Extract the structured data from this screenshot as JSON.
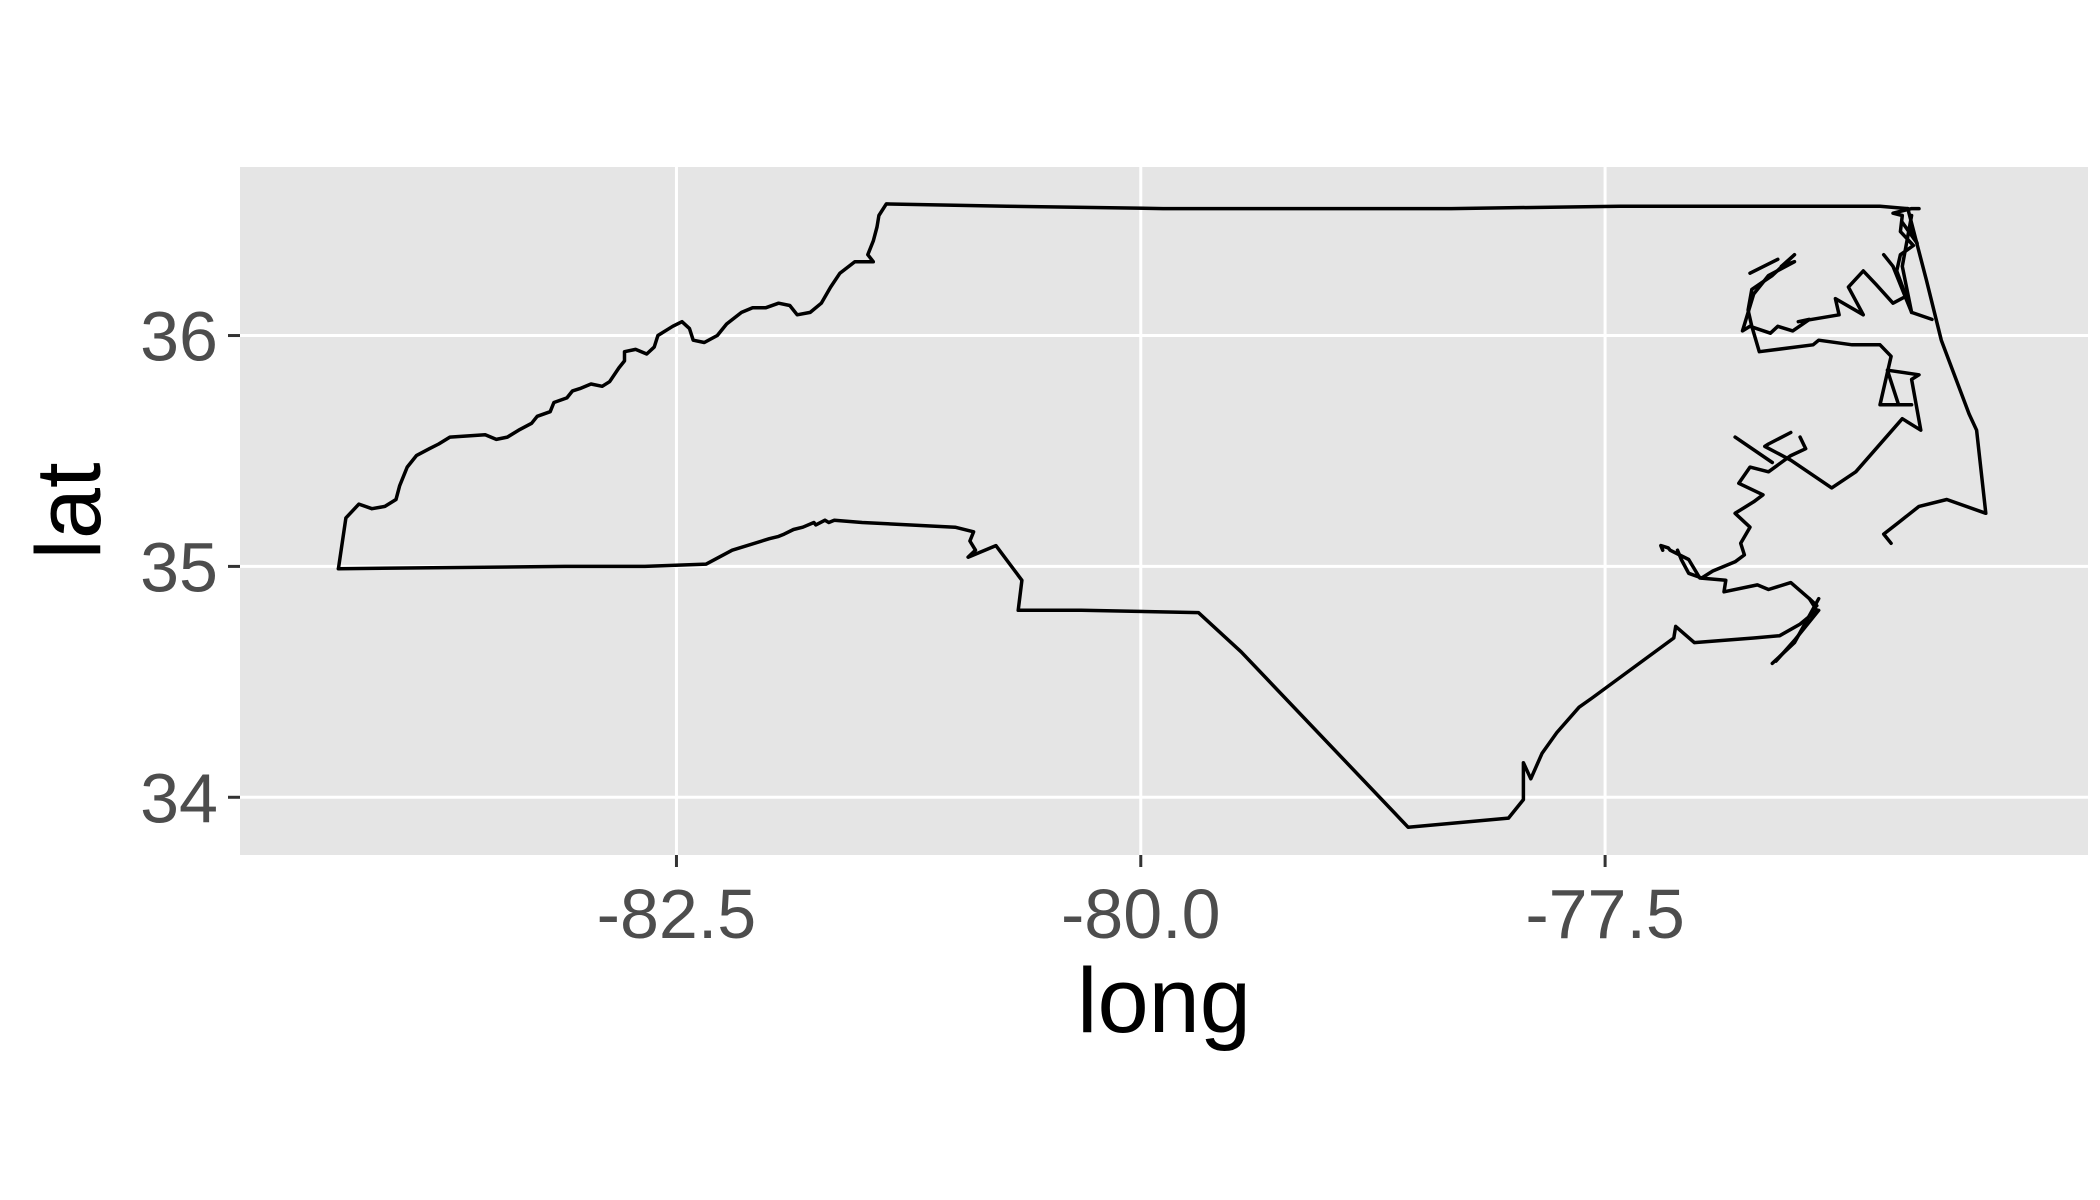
{
  "chart_data": {
    "type": "map-outline",
    "xlabel": "long",
    "ylabel": "lat",
    "xlim": [
      -84.85,
      -74.9
    ],
    "ylim": [
      33.75,
      36.73
    ],
    "x_ticks": [
      {
        "value": -82.5,
        "label": "-82.5"
      },
      {
        "value": -80.0,
        "label": "-80.0"
      },
      {
        "value": -77.5,
        "label": "-77.5"
      }
    ],
    "y_ticks": [
      {
        "value": 34,
        "label": "34"
      },
      {
        "value": 35,
        "label": "35"
      },
      {
        "value": 36,
        "label": "36"
      }
    ],
    "grid": true,
    "outline_color": "#000000",
    "panel_color": "#e5e5e5",
    "paths": [
      [
        [
          -84.32,
          34.99
        ],
        [
          -84.28,
          35.21
        ],
        [
          -84.21,
          35.27
        ],
        [
          -84.14,
          35.25
        ],
        [
          -84.07,
          35.26
        ],
        [
          -84.01,
          35.29
        ],
        [
          -83.99,
          35.35
        ],
        [
          -83.96,
          35.41
        ],
        [
          -83.95,
          35.43
        ],
        [
          -83.9,
          35.48
        ],
        [
          -83.83,
          35.51
        ],
        [
          -83.78,
          35.53
        ],
        [
          -83.72,
          35.56
        ],
        [
          -83.53,
          35.57
        ],
        [
          -83.47,
          35.55
        ],
        [
          -83.41,
          35.56
        ],
        [
          -83.35,
          35.59
        ],
        [
          -83.28,
          35.62
        ],
        [
          -83.25,
          35.65
        ],
        [
          -83.18,
          35.67
        ],
        [
          -83.16,
          35.71
        ],
        [
          -83.09,
          35.73
        ],
        [
          -83.06,
          35.76
        ],
        [
          -83.02,
          35.77
        ],
        [
          -82.96,
          35.79
        ],
        [
          -82.9,
          35.78
        ],
        [
          -82.86,
          35.8
        ],
        [
          -82.81,
          35.86
        ],
        [
          -82.78,
          35.89
        ],
        [
          -82.78,
          35.93
        ],
        [
          -82.72,
          35.94
        ],
        [
          -82.66,
          35.92
        ],
        [
          -82.62,
          35.95
        ],
        [
          -82.6,
          36.0
        ],
        [
          -82.52,
          36.04
        ],
        [
          -82.47,
          36.06
        ],
        [
          -82.43,
          36.03
        ],
        [
          -82.41,
          35.98
        ],
        [
          -82.35,
          35.97
        ],
        [
          -82.28,
          36.0
        ],
        [
          -82.23,
          36.05
        ],
        [
          -82.15,
          36.1
        ],
        [
          -82.09,
          36.12
        ],
        [
          -82.02,
          36.12
        ],
        [
          -81.95,
          36.14
        ],
        [
          -81.89,
          36.13
        ],
        [
          -81.85,
          36.09
        ],
        [
          -81.78,
          36.1
        ],
        [
          -81.72,
          36.14
        ],
        [
          -81.67,
          36.21
        ],
        [
          -81.62,
          36.27
        ],
        [
          -81.54,
          36.32
        ],
        [
          -81.44,
          36.32
        ],
        [
          -81.47,
          36.35
        ],
        [
          -81.44,
          36.41
        ],
        [
          -81.42,
          36.47
        ],
        [
          -81.41,
          36.52
        ],
        [
          -81.37,
          36.57
        ],
        [
          -80.72,
          36.56
        ],
        [
          -79.88,
          36.55
        ],
        [
          -79.09,
          36.55
        ],
        [
          -78.33,
          36.55
        ],
        [
          -77.42,
          36.56
        ],
        [
          -76.47,
          36.56
        ],
        [
          -76.02,
          36.56
        ],
        [
          -75.87,
          36.55
        ]
      ],
      [
        [
          -75.87,
          36.55
        ],
        [
          -75.77,
          36.24
        ],
        [
          -75.69,
          35.98
        ],
        [
          -75.54,
          35.66
        ],
        [
          -75.5,
          35.59
        ],
        [
          -75.45,
          35.23
        ],
        [
          -75.66,
          35.29
        ],
        [
          -75.81,
          35.26
        ],
        [
          -75.92,
          35.19
        ],
        [
          -76.0,
          35.14
        ],
        [
          -75.96,
          35.1
        ]
      ],
      [
        [
          -84.32,
          34.99
        ],
        [
          -83.1,
          35.0
        ],
        [
          -82.67,
          35.0
        ],
        [
          -82.34,
          35.01
        ],
        [
          -82.2,
          35.07
        ],
        [
          -82.0,
          35.12
        ],
        [
          -81.95,
          35.13
        ],
        [
          -81.92,
          35.14
        ],
        [
          -81.87,
          35.16
        ],
        [
          -81.82,
          35.17
        ],
        [
          -81.76,
          35.19
        ],
        [
          -81.75,
          35.18
        ],
        [
          -81.7,
          35.2
        ],
        [
          -81.68,
          35.19
        ],
        [
          -81.65,
          35.2
        ],
        [
          -81.5,
          35.19
        ],
        [
          -81.0,
          35.17
        ],
        [
          -80.9,
          35.15
        ],
        [
          -80.92,
          35.11
        ],
        [
          -80.89,
          35.07
        ],
        [
          -80.93,
          35.04
        ],
        [
          -80.78,
          35.09
        ],
        [
          -80.64,
          34.94
        ],
        [
          -80.66,
          34.81
        ],
        [
          -80.32,
          34.81
        ],
        [
          -79.69,
          34.8
        ],
        [
          -79.46,
          34.63
        ],
        [
          -78.56,
          33.87
        ],
        [
          -78.02,
          33.91
        ],
        [
          -77.94,
          33.99
        ],
        [
          -77.94,
          34.15
        ],
        [
          -77.9,
          34.08
        ],
        [
          -77.84,
          34.19
        ],
        [
          -77.76,
          34.28
        ],
        [
          -77.64,
          34.39
        ],
        [
          -77.57,
          34.43
        ],
        [
          -77.13,
          34.69
        ],
        [
          -77.12,
          34.74
        ],
        [
          -77.02,
          34.67
        ],
        [
          -76.7,
          34.69
        ],
        [
          -76.56,
          34.7
        ],
        [
          -76.45,
          34.75
        ],
        [
          -76.36,
          34.81
        ],
        [
          -76.4,
          34.86
        ],
        [
          -76.36,
          34.83
        ]
      ],
      [
        [
          -76.35,
          34.86
        ],
        [
          -76.48,
          34.67
        ],
        [
          -76.6,
          34.58
        ]
      ],
      [
        [
          -76.35,
          34.81
        ],
        [
          -76.48,
          34.68
        ],
        [
          -76.58,
          34.59
        ]
      ],
      [
        [
          -76.4,
          34.86
        ],
        [
          -76.5,
          34.93
        ],
        [
          -76.62,
          34.9
        ],
        [
          -76.68,
          34.92
        ],
        [
          -76.86,
          34.89
        ],
        [
          -76.85,
          34.94
        ],
        [
          -76.99,
          34.95
        ],
        [
          -77.05,
          35.03
        ],
        [
          -77.15,
          35.07
        ],
        [
          -77.16,
          35.08
        ],
        [
          -77.2,
          35.09
        ],
        [
          -77.19,
          35.07
        ]
      ],
      [
        [
          -77.11,
          35.07
        ],
        [
          -77.09,
          35.03
        ],
        [
          -77.05,
          34.97
        ],
        [
          -76.98,
          34.95
        ],
        [
          -76.92,
          34.98
        ],
        [
          -76.8,
          35.02
        ],
        [
          -76.75,
          35.05
        ],
        [
          -76.77,
          35.1
        ],
        [
          -76.72,
          35.17
        ],
        [
          -76.8,
          35.23
        ],
        [
          -76.7,
          35.28
        ],
        [
          -76.65,
          35.31
        ],
        [
          -76.78,
          35.36
        ],
        [
          -76.72,
          35.43
        ],
        [
          -76.62,
          35.41
        ],
        [
          -76.5,
          35.48
        ],
        [
          -76.42,
          35.51
        ],
        [
          -76.45,
          35.56
        ]
      ],
      [
        [
          -76.5,
          35.58
        ],
        [
          -76.62,
          35.53
        ],
        [
          -76.64,
          35.52
        ],
        [
          -76.5,
          35.46
        ],
        [
          -76.28,
          35.34
        ],
        [
          -76.15,
          35.41
        ],
        [
          -75.9,
          35.64
        ],
        [
          -75.8,
          35.59
        ],
        [
          -75.85,
          35.81
        ],
        [
          -75.81,
          35.83
        ],
        [
          -75.98,
          35.85
        ],
        [
          -75.96,
          35.8
        ],
        [
          -75.92,
          35.7
        ],
        [
          -75.85,
          35.7
        ],
        [
          -76.02,
          35.7
        ],
        [
          -75.96,
          35.91
        ],
        [
          -76.02,
          35.96
        ],
        [
          -76.17,
          35.96
        ],
        [
          -76.35,
          35.98
        ],
        [
          -76.38,
          35.96
        ],
        [
          -76.67,
          35.93
        ],
        [
          -76.71,
          36.04
        ],
        [
          -76.73,
          36.11
        ],
        [
          -76.71,
          36.2
        ],
        [
          -76.6,
          36.26
        ],
        [
          -76.48,
          36.35
        ],
        [
          -76.55,
          36.3
        ]
      ],
      [
        [
          -76.8,
          35.56
        ],
        [
          -76.6,
          35.45
        ]
      ],
      [
        [
          -76.72,
          36.27
        ],
        [
          -76.57,
          36.33
        ]
      ],
      [
        [
          -76.55,
          36.3
        ],
        [
          -76.48,
          36.32
        ],
        [
          -76.62,
          36.26
        ],
        [
          -76.7,
          36.18
        ],
        [
          -76.76,
          36.02
        ],
        [
          -76.72,
          36.04
        ],
        [
          -76.61,
          36.01
        ],
        [
          -76.57,
          36.04
        ],
        [
          -76.49,
          36.02
        ],
        [
          -76.4,
          36.07
        ],
        [
          -76.46,
          36.06
        ],
        [
          -76.24,
          36.09
        ],
        [
          -76.26,
          36.16
        ],
        [
          -76.11,
          36.09
        ],
        [
          -76.19,
          36.21
        ],
        [
          -76.11,
          36.28
        ],
        [
          -76.04,
          36.22
        ],
        [
          -75.95,
          36.14
        ],
        [
          -75.88,
          36.17
        ],
        [
          -75.93,
          36.28
        ],
        [
          -75.91,
          36.35
        ],
        [
          -75.84,
          36.39
        ],
        [
          -75.91,
          36.45
        ],
        [
          -75.9,
          36.52
        ],
        [
          -75.95,
          36.53
        ],
        [
          -75.85,
          36.55
        ],
        [
          -75.81,
          36.55
        ]
      ],
      [
        [
          -75.85,
          36.52
        ],
        [
          -75.9,
          36.3
        ],
        [
          -75.85,
          36.1
        ]
      ],
      [
        [
          -75.74,
          36.07
        ],
        [
          -75.85,
          36.1
        ],
        [
          -75.95,
          36.3
        ],
        [
          -76.0,
          36.35
        ]
      ],
      [
        [
          -75.9,
          36.49
        ],
        [
          -75.82,
          36.4
        ],
        [
          -75.86,
          36.47
        ]
      ]
    ]
  }
}
